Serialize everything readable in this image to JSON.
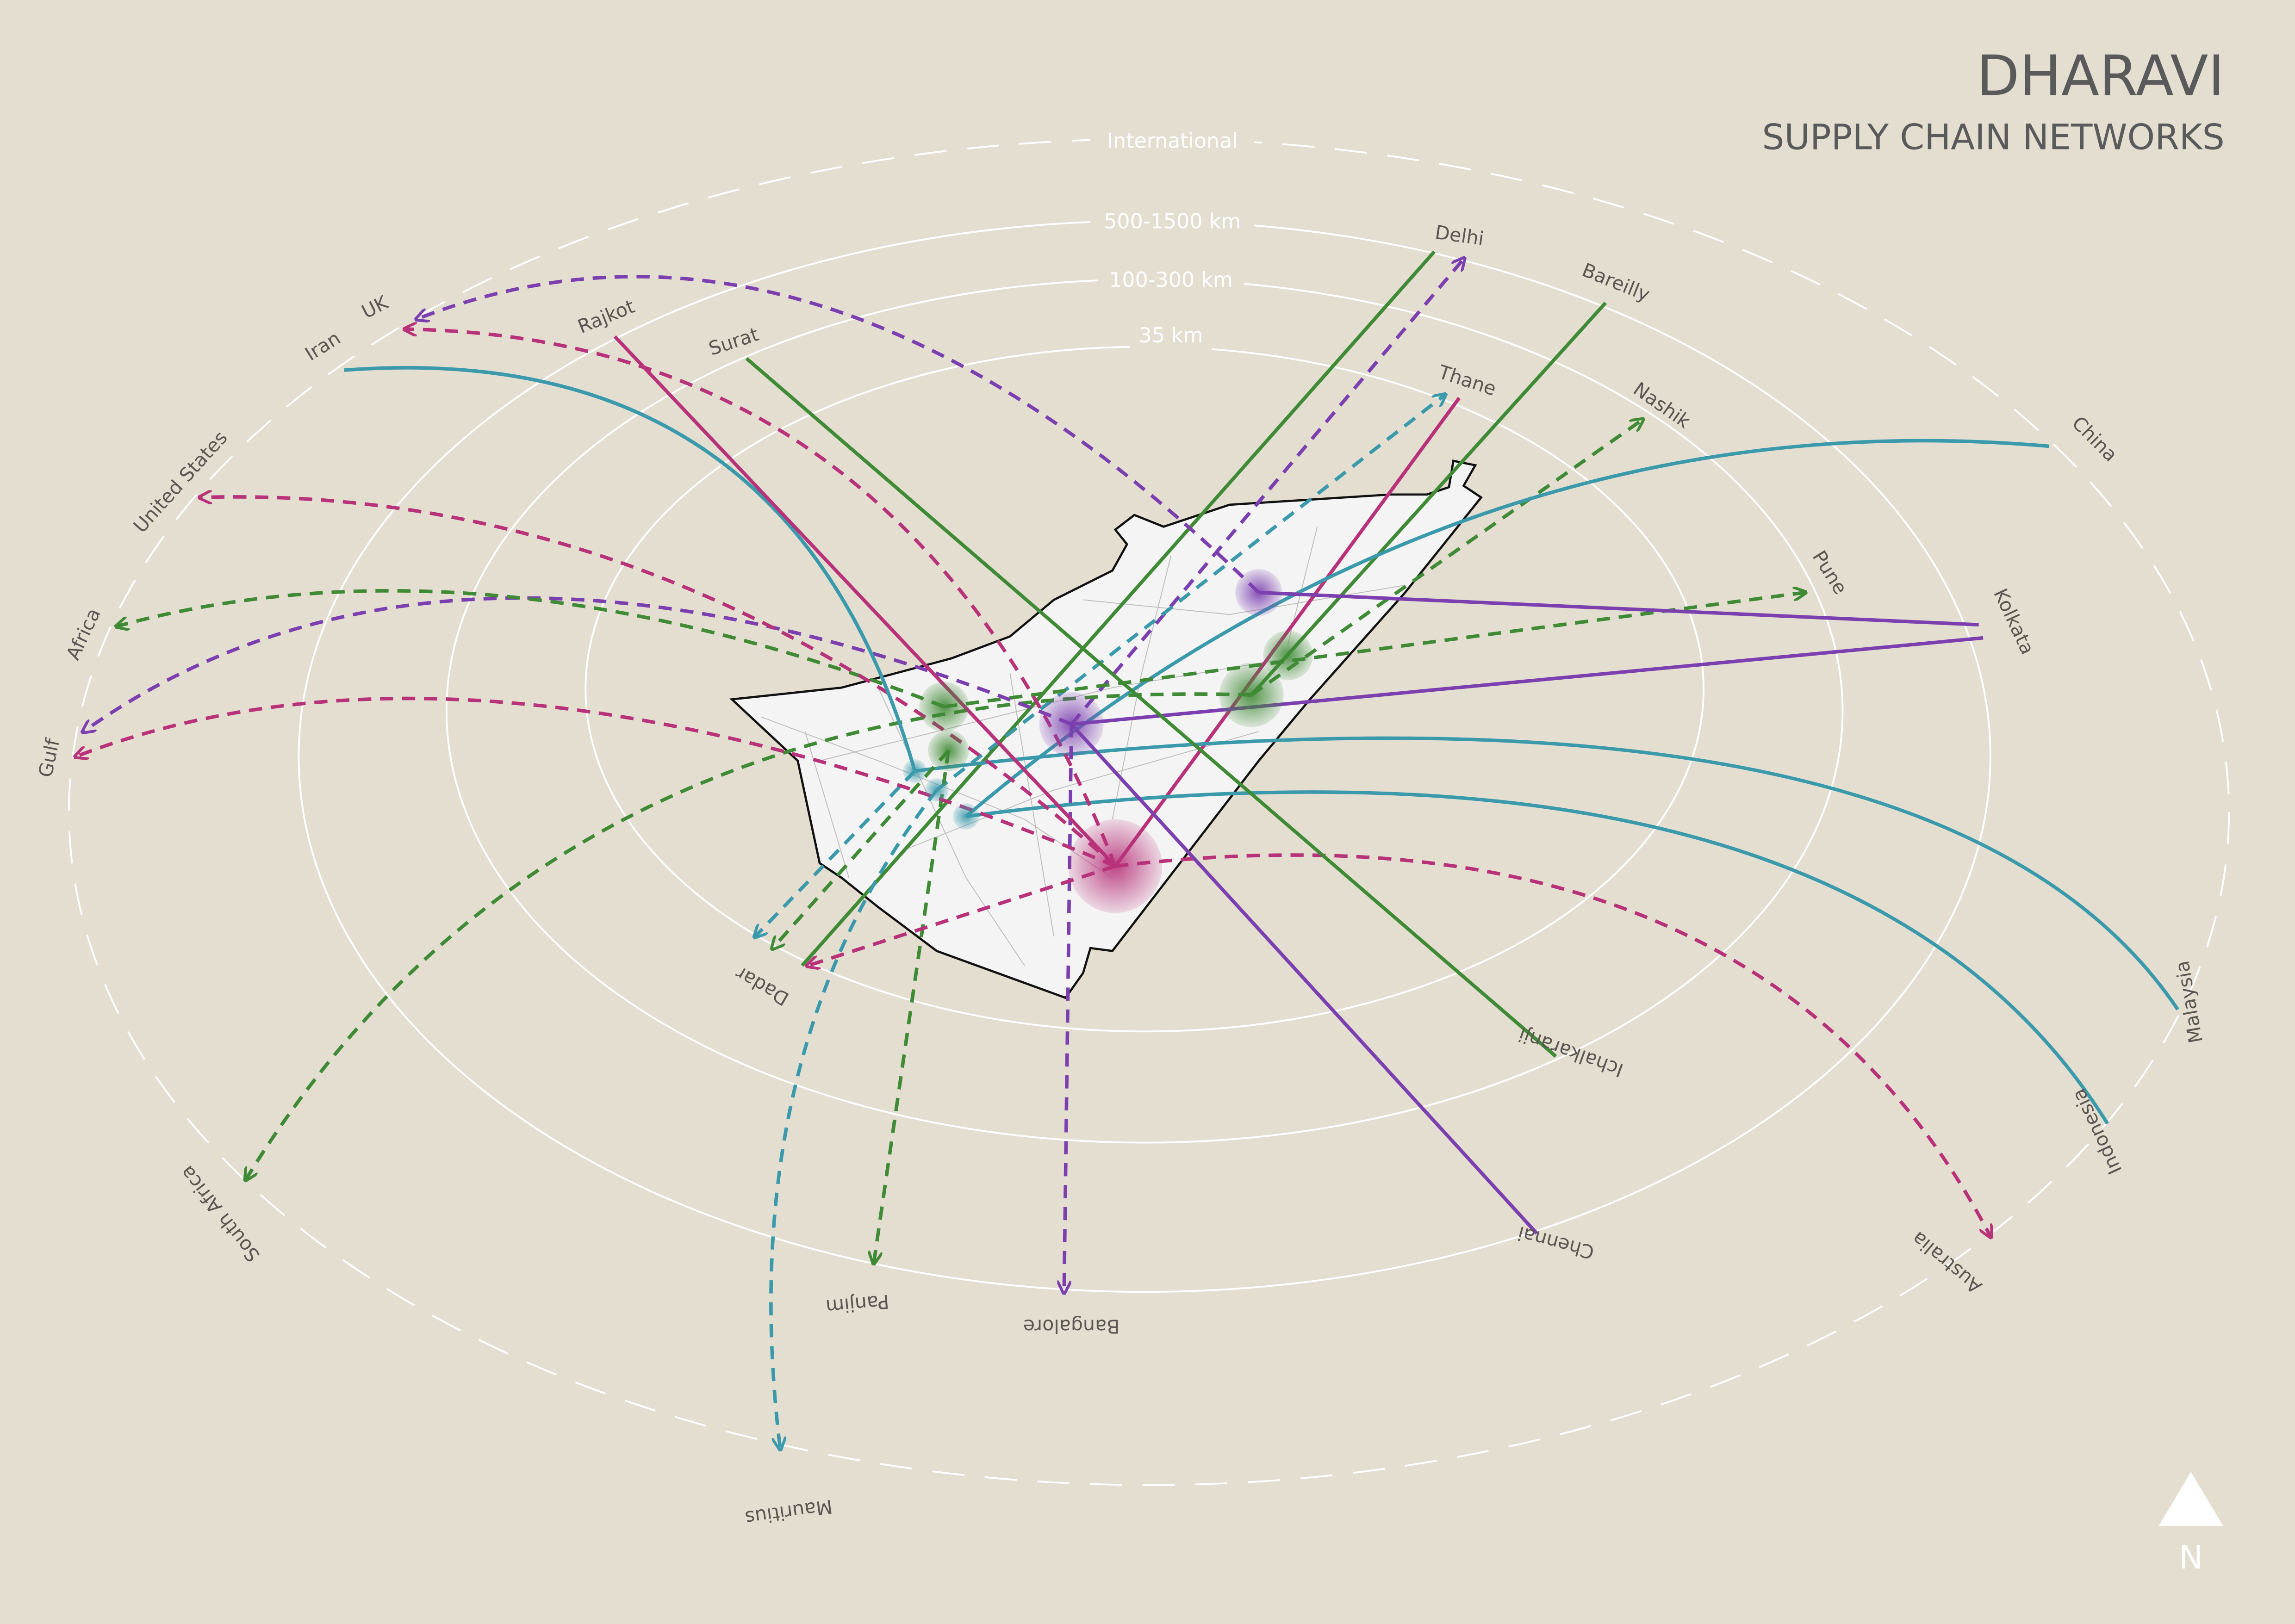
{
  "title": "DHARAVI",
  "subtitle": "SUPPLY CHAIN NETWORKS",
  "north_label": "N",
  "colors": {
    "background": "#e4ded1",
    "purple": "#7b3fb0",
    "magenta": "#b8327a",
    "green": "#3f8a35",
    "teal": "#3a9aab",
    "text": "#5a5a5a"
  },
  "rings": [
    "International",
    "500-1500 km",
    "100-300 km",
    "35 km"
  ],
  "places": {
    "delhi": "Delhi",
    "bareilly": "Bareilly",
    "thane": "Thane",
    "nashik": "Nashik",
    "china": "China",
    "pune": "Pune",
    "kolkata": "Kolkata",
    "malaysia": "Malaysia",
    "indonesia": "Indonesia",
    "australia": "Australia",
    "chennai": "Chennai",
    "ichalkaranji": "Ichalkaranji",
    "bangalore": "Bangalore",
    "panjim": "Panjim",
    "mauritius": "Mauritius",
    "south_africa": "South Africa",
    "dadar": "Dadar",
    "gulf": "Gulf",
    "africa": "Africa",
    "united_states": "United States",
    "iran": "Iran",
    "uk": "UK",
    "rajkot": "Rajkot",
    "surat": "Surat"
  }
}
